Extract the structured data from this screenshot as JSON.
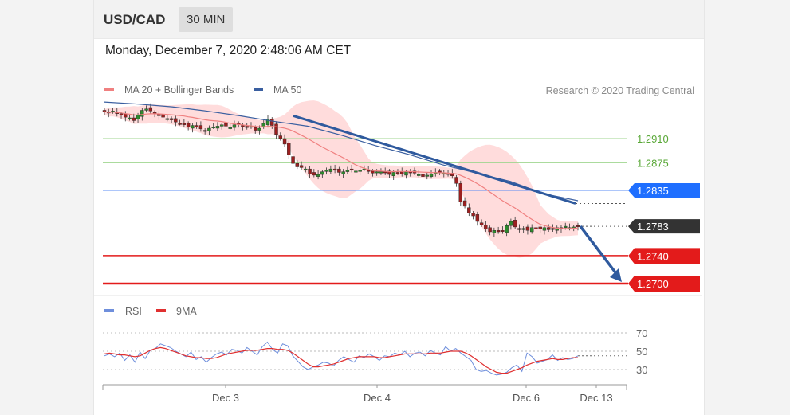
{
  "header": {
    "symbol": "USD/CAD",
    "timeframe": "30 MIN",
    "timestamp": "Monday, December 7, 2020 2:48:06 AM CET"
  },
  "legend": {
    "ma20_label": "MA 20 + Bollinger Bands",
    "ma50_label": "MA 50",
    "credit": "Research © 2020 Trading Central",
    "rsi_label": "RSI",
    "rsi_ma_label": "9MA"
  },
  "colors": {
    "candle_up": "#2d8a2d",
    "candle_down": "#9b2020",
    "bollinger_fill": "#ffd3d3",
    "ma20": "#f08080",
    "ma50": "#3a5fa0",
    "trendline": "#2f5a9e",
    "resistance": "#6abf4b",
    "pivot": "#1f6fff",
    "last": "#333333",
    "support": "#e31b1b",
    "rsi": "#6f8fdc",
    "rsi_ma": "#e03030"
  },
  "chart_data": {
    "type": "candlestick",
    "price_range": [
      1.2682,
      1.299
    ],
    "levels": [
      {
        "label": "1.2910",
        "value": 1.291,
        "kind": "resistance"
      },
      {
        "label": "1.2875",
        "value": 1.2875,
        "kind": "resistance"
      },
      {
        "label": "1.2835",
        "value": 1.2835,
        "kind": "pivot"
      },
      {
        "label": "1.2783",
        "value": 1.2783,
        "kind": "last"
      },
      {
        "label": "1.2740",
        "value": 1.274,
        "kind": "support"
      },
      {
        "label": "1.2700",
        "value": 1.27,
        "kind": "support"
      }
    ],
    "x_ticks": [
      "Dec 3",
      "Dec 4",
      "Dec 6",
      "Dec 13"
    ],
    "close_series": [
      1.2949,
      1.2947,
      1.295,
      1.2946,
      1.2944,
      1.2941,
      1.294,
      1.2936,
      1.2944,
      1.2951,
      1.2953,
      1.295,
      1.2946,
      1.2943,
      1.2941,
      1.2939,
      1.2937,
      1.2934,
      1.2932,
      1.293,
      1.2927,
      1.2929,
      1.2927,
      1.2924,
      1.2921,
      1.2925,
      1.2927,
      1.2928,
      1.293,
      1.2928,
      1.2926,
      1.293,
      1.2931,
      1.2928,
      1.2926,
      1.2928,
      1.2922,
      1.2925,
      1.2932,
      1.2938,
      1.2929,
      1.2916,
      1.291,
      1.2902,
      1.2886,
      1.2874,
      1.2869,
      1.2868,
      1.2866,
      1.2859,
      1.2857,
      1.2858,
      1.2862,
      1.2864,
      1.2866,
      1.2864,
      1.2861,
      1.2862,
      1.2864,
      1.2865,
      1.2863,
      1.2864,
      1.2866,
      1.2863,
      1.286,
      1.2862,
      1.2862,
      1.2861,
      1.2858,
      1.2861,
      1.286,
      1.2859,
      1.2862,
      1.2861,
      1.286,
      1.2858,
      1.2855,
      1.2857,
      1.2859,
      1.2861,
      1.2862,
      1.286,
      1.2858,
      1.2856,
      1.2845,
      1.2818,
      1.2812,
      1.2802,
      1.2798,
      1.279,
      1.2785,
      1.2779,
      1.2775,
      1.2777,
      1.2775,
      1.2776,
      1.2784,
      1.279,
      1.2782,
      1.2778,
      1.278,
      1.2777,
      1.2781,
      1.278,
      1.2779,
      1.2781,
      1.2778,
      1.2779,
      1.2781,
      1.2779,
      1.2783,
      1.2781,
      1.2782,
      1.2783
    ],
    "ma50_series": [
      1.2963,
      1.296,
      1.2956,
      1.295,
      1.2943,
      1.2935,
      1.2928,
      1.2915,
      1.29,
      1.2887,
      1.2872,
      1.286,
      1.2848,
      1.283,
      1.282
    ],
    "trendline": {
      "from": 1.2943,
      "to": 1.2816
    },
    "projection_target": 1.27,
    "rsi": {
      "range": [
        0,
        100
      ],
      "levels": [
        70,
        50,
        30
      ],
      "rsi_series": [
        45,
        47,
        44,
        48,
        40,
        46,
        38,
        49,
        42,
        51,
        53,
        58,
        56,
        54,
        50,
        47,
        44,
        49,
        41,
        44,
        38,
        43,
        47,
        49,
        46,
        52,
        51,
        48,
        54,
        50,
        46,
        55,
        60,
        52,
        48,
        58,
        56,
        45,
        39,
        33,
        30,
        33,
        35,
        38,
        37,
        34,
        40,
        44,
        41,
        38,
        45,
        43,
        47,
        44,
        40,
        45,
        44,
        48,
        46,
        50,
        44,
        48,
        49,
        45,
        51,
        48,
        46,
        55,
        50,
        53,
        48,
        44,
        40,
        30,
        28,
        29,
        26,
        24,
        25,
        27,
        32,
        35,
        28,
        48,
        44,
        37,
        39,
        41,
        46,
        40,
        43,
        41,
        42,
        45
      ],
      "ma_series": [
        47,
        48,
        47,
        46,
        46,
        45,
        44,
        45,
        48,
        51,
        53,
        54,
        53,
        51,
        49,
        47,
        45,
        44,
        43,
        43,
        42,
        42,
        43,
        45,
        47,
        48,
        49,
        50,
        51,
        51,
        51,
        52,
        53,
        53,
        52,
        52,
        51,
        48,
        44,
        40,
        36,
        33,
        33,
        34,
        35,
        36,
        38,
        40,
        42,
        43,
        44,
        44,
        44,
        44,
        43,
        43,
        44,
        45,
        46,
        47,
        47,
        47,
        47,
        47,
        48,
        48,
        48,
        49,
        50,
        50,
        50,
        48,
        45,
        41,
        37,
        33,
        30,
        27,
        26,
        26,
        28,
        30,
        32,
        35,
        37,
        39,
        40,
        41,
        42,
        41,
        41,
        42,
        43,
        43
      ]
    }
  }
}
